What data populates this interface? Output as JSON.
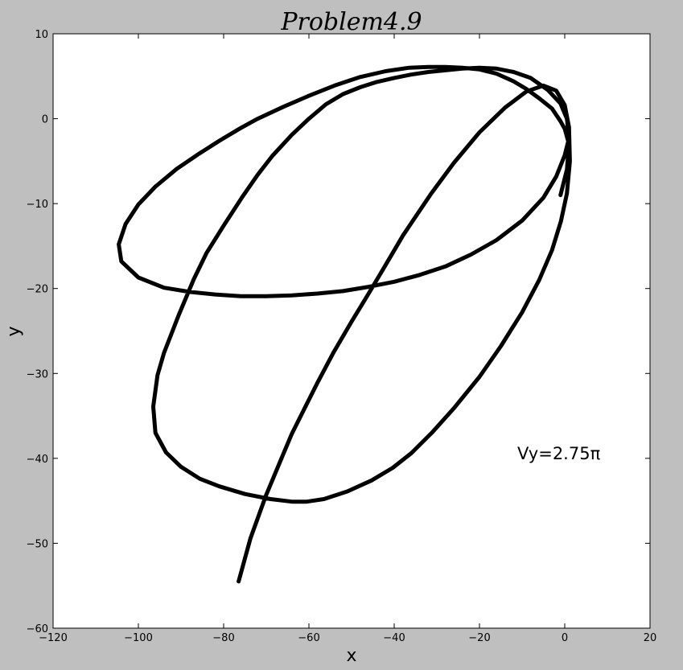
{
  "chart_data": {
    "type": "line",
    "title": "Problem4.9",
    "xlabel": "x",
    "ylabel": "y",
    "xlim": [
      -120,
      20
    ],
    "ylim": [
      -60,
      10
    ],
    "grid": false,
    "legend": "none",
    "xticks": [
      "−120",
      "−100",
      "−80",
      "−60",
      "−40",
      "−20",
      "0",
      "20"
    ],
    "yticks": [
      "−60",
      "−50",
      "−40",
      "−30",
      "−20",
      "−10",
      "0",
      "10"
    ],
    "annotation": {
      "text": "Vy=2.75π",
      "x": -10,
      "y": -40
    },
    "line_color": "#000000",
    "series": [
      {
        "x": [
          -76.5,
          -73.7,
          -70.1,
          -66.6,
          -64.0,
          -60.9,
          -58.0,
          -54.3,
          -50.0,
          -46.0,
          -42.1,
          -38.0,
          -36.0,
          -31.3,
          -26.0,
          -20.0,
          -14.0,
          -9.0,
          -5.0,
          -2.0,
          0.0,
          1.0,
          1.2,
          0.5,
          -0.9,
          -3.0,
          -6.0,
          -10.0,
          -15.0,
          -20.0,
          -26.0,
          -31.0,
          -36.0,
          -40.3,
          -45.3,
          -51.0,
          -56.5,
          -60.5,
          -64.0,
          -69.0,
          -75.0,
          -81.0,
          -85.6,
          -90.0,
          -93.5,
          -96.0,
          -96.5,
          -95.5,
          -94.0,
          -90.5,
          -87.0,
          -84.0,
          -80.0,
          -75.6,
          -72.0,
          -68.6,
          -64.0,
          -60.0,
          -56.0,
          -52.0,
          -48.0,
          -44.3,
          -40.0,
          -36.0,
          -32.0,
          -28.0,
          -24.0,
          -20.0,
          -16.0,
          -12.0,
          -8.0,
          -4.0,
          -1.0,
          0.5,
          1.0,
          0.0,
          -2.0,
          -5.0,
          -10.0,
          -16.0,
          -22.0,
          -28.0,
          -34.0,
          -40.0,
          -46.0,
          -52.0,
          -58.0,
          -64.0,
          -70.0,
          -76.0,
          -82.0,
          -88.0,
          -94.0,
          -100.0,
          -104.0,
          -104.6,
          -103.0,
          -100.0,
          -96.0,
          -91.0,
          -86.0,
          -81.0,
          -76.0,
          -72.0,
          -66.0,
          -60.0,
          -54.0,
          -48.0,
          -42.0,
          -36.5,
          -32.0,
          -28.0,
          -24.0,
          -20.0,
          -16.0,
          -12.0,
          -9.0,
          -6.0,
          -3.0,
          -1.0,
          0.0,
          1.0,
          0.5,
          -1.0
        ],
        "y": [
          -54.5,
          -49.4,
          -44.4,
          -40.2,
          -37.1,
          -34.0,
          -31.1,
          -27.6,
          -23.9,
          -20.6,
          -17.3,
          -13.8,
          -12.3,
          -8.8,
          -5.2,
          -1.6,
          1.3,
          3.2,
          3.9,
          3.3,
          1.6,
          -1.0,
          -5.0,
          -8.8,
          -12.1,
          -15.5,
          -19.0,
          -22.8,
          -26.8,
          -30.4,
          -34.1,
          -36.9,
          -39.4,
          -41.1,
          -42.6,
          -43.9,
          -44.8,
          -45.1,
          -45.1,
          -44.8,
          -44.2,
          -43.3,
          -42.4,
          -41.0,
          -39.3,
          -37.0,
          -33.9,
          -30.2,
          -27.6,
          -23.1,
          -18.9,
          -15.8,
          -12.6,
          -9.2,
          -6.6,
          -4.4,
          -1.9,
          0.0,
          1.7,
          2.9,
          3.7,
          4.3,
          4.8,
          5.2,
          5.5,
          5.7,
          5.9,
          6.0,
          5.9,
          5.5,
          4.8,
          3.4,
          1.8,
          0.0,
          -2.3,
          -4.3,
          -6.8,
          -9.3,
          -12.0,
          -14.3,
          -16.0,
          -17.4,
          -18.4,
          -19.2,
          -19.8,
          -20.3,
          -20.6,
          -20.8,
          -20.9,
          -20.9,
          -20.7,
          -20.4,
          -19.9,
          -18.7,
          -16.8,
          -14.8,
          -12.4,
          -10.1,
          -8.0,
          -5.9,
          -4.2,
          -2.6,
          -1.1,
          0.0,
          1.4,
          2.7,
          3.9,
          4.9,
          5.6,
          6.0,
          6.1,
          6.1,
          6.0,
          5.8,
          5.3,
          4.4,
          3.5,
          2.4,
          1.2,
          -0.3,
          -1.2,
          -3.0,
          -6.0,
          -9.0
        ]
      }
    ]
  }
}
